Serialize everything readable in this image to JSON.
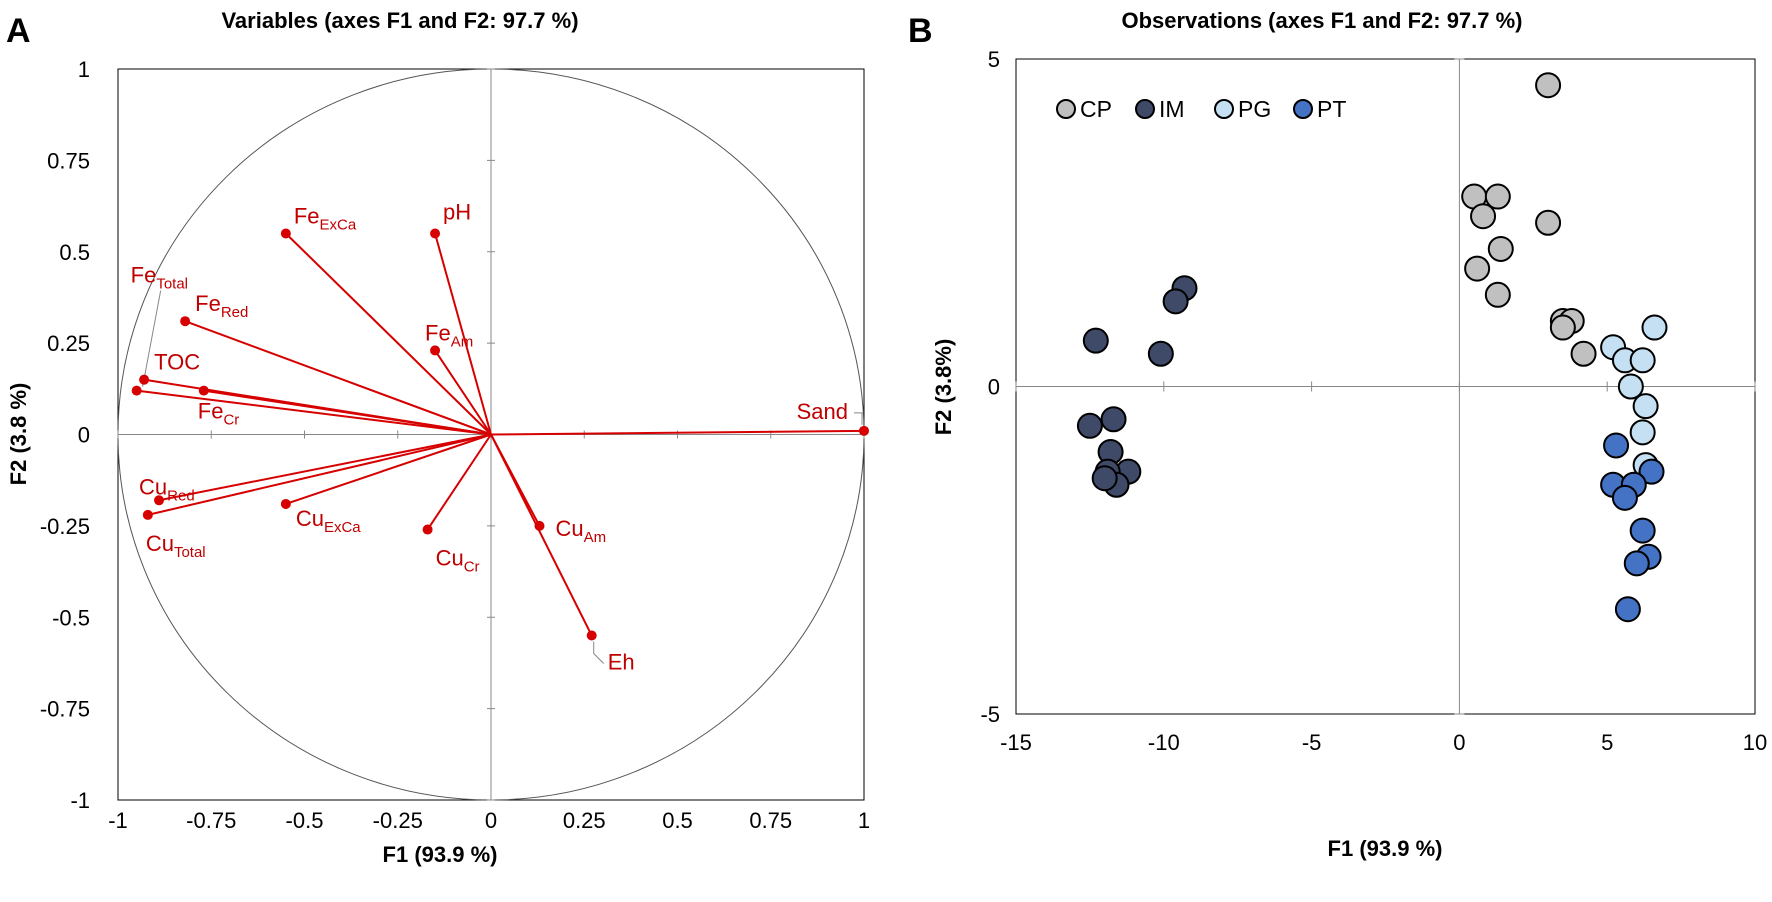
{
  "chart_data": [
    {
      "panel_letter": "A",
      "type": "scatter",
      "subtype": "correlation-circle",
      "title": "Variables (axes F1 and F2: 97.7 %)",
      "xlabel": "F1 (93.9 %)",
      "ylabel": "F2 (3.8 %)",
      "xlim": [
        -1,
        1
      ],
      "ylim": [
        -1,
        1
      ],
      "xticks": [
        "-1",
        "-0.75",
        "-0.5",
        "-0.25",
        "0",
        "0.25",
        "0.5",
        "0.75",
        "1"
      ],
      "yticks": [
        "1",
        "0.75",
        "0.5",
        "0.25",
        "0",
        "-0.25",
        "-0.5",
        "-0.75",
        "-1"
      ],
      "grid": false,
      "color": "#d60000",
      "vectors": [
        {
          "base": "Fe",
          "sub": "ExCa",
          "x": -0.55,
          "y": 0.55
        },
        {
          "base": "pH",
          "sub": "",
          "x": -0.15,
          "y": 0.55
        },
        {
          "base": "Fe",
          "sub": "Total",
          "x": -0.95,
          "y": 0.12
        },
        {
          "base": "Fe",
          "sub": "Red",
          "x": -0.82,
          "y": 0.31
        },
        {
          "base": "Fe",
          "sub": "Am",
          "x": -0.15,
          "y": 0.23
        },
        {
          "base": "TOC",
          "sub": "",
          "x": -0.93,
          "y": 0.15
        },
        {
          "base": "Fe",
          "sub": "Cr",
          "x": -0.77,
          "y": 0.12
        },
        {
          "base": "Sand",
          "sub": "",
          "x": 1.0,
          "y": 0.01
        },
        {
          "base": "Cu",
          "sub": "Red",
          "x": -0.89,
          "y": -0.18
        },
        {
          "base": "Cu",
          "sub": "Total",
          "x": -0.92,
          "y": -0.22
        },
        {
          "base": "Cu",
          "sub": "ExCa",
          "x": -0.55,
          "y": -0.19
        },
        {
          "base": "Cu",
          "sub": "Cr",
          "x": -0.17,
          "y": -0.26
        },
        {
          "base": "Cu",
          "sub": "Am",
          "x": 0.13,
          "y": -0.25
        },
        {
          "base": "Eh",
          "sub": "",
          "x": 0.27,
          "y": -0.55
        }
      ]
    },
    {
      "panel_letter": "B",
      "type": "scatter",
      "title": "Observations (axes F1 and F2: 97.7 %)",
      "xlabel": "F1 (93.9 %)",
      "ylabel": "F2 (3.8%)",
      "xlim": [
        -15,
        10
      ],
      "ylim": [
        -5,
        5
      ],
      "xticks": [
        "-15",
        "-10",
        "-5",
        "0",
        "5",
        "10"
      ],
      "yticks": [
        "5",
        "0",
        "-5"
      ],
      "grid": false,
      "legend": "top-left",
      "series": [
        {
          "name": "CP",
          "color": "#c0c0c0",
          "x": [
            3.0,
            0.5,
            1.3,
            0.8,
            3.0,
            1.4,
            0.6,
            1.3,
            3.5,
            3.8,
            3.5,
            4.2
          ],
          "y": [
            4.6,
            2.9,
            2.9,
            2.6,
            2.5,
            2.1,
            1.8,
            1.4,
            1.0,
            1.0,
            0.9,
            0.5
          ]
        },
        {
          "name": "IM",
          "color": "#3f4a68",
          "x": [
            -9.3,
            -9.6,
            -12.3,
            -10.1,
            -11.7,
            -12.5,
            -11.8,
            -11.2,
            -11.9,
            -11.6,
            -12.0
          ],
          "y": [
            1.5,
            1.3,
            0.7,
            0.5,
            -0.5,
            -0.6,
            -1.0,
            -1.3,
            -1.3,
            -1.5,
            -1.4
          ]
        },
        {
          "name": "PG",
          "color": "#c4e0f2",
          "x": [
            6.6,
            5.2,
            5.6,
            6.2,
            5.8,
            6.3,
            6.2,
            6.3
          ],
          "y": [
            0.9,
            0.6,
            0.4,
            0.4,
            0.0,
            -0.3,
            -0.7,
            -1.2
          ]
        },
        {
          "name": "PT",
          "color": "#4472c4",
          "x": [
            5.3,
            5.2,
            6.5,
            5.9,
            5.6,
            6.2,
            6.4,
            6.0,
            5.7
          ],
          "y": [
            -0.9,
            -1.5,
            -1.3,
            -1.5,
            -1.7,
            -2.2,
            -2.6,
            -2.7,
            -3.4
          ]
        }
      ]
    }
  ]
}
